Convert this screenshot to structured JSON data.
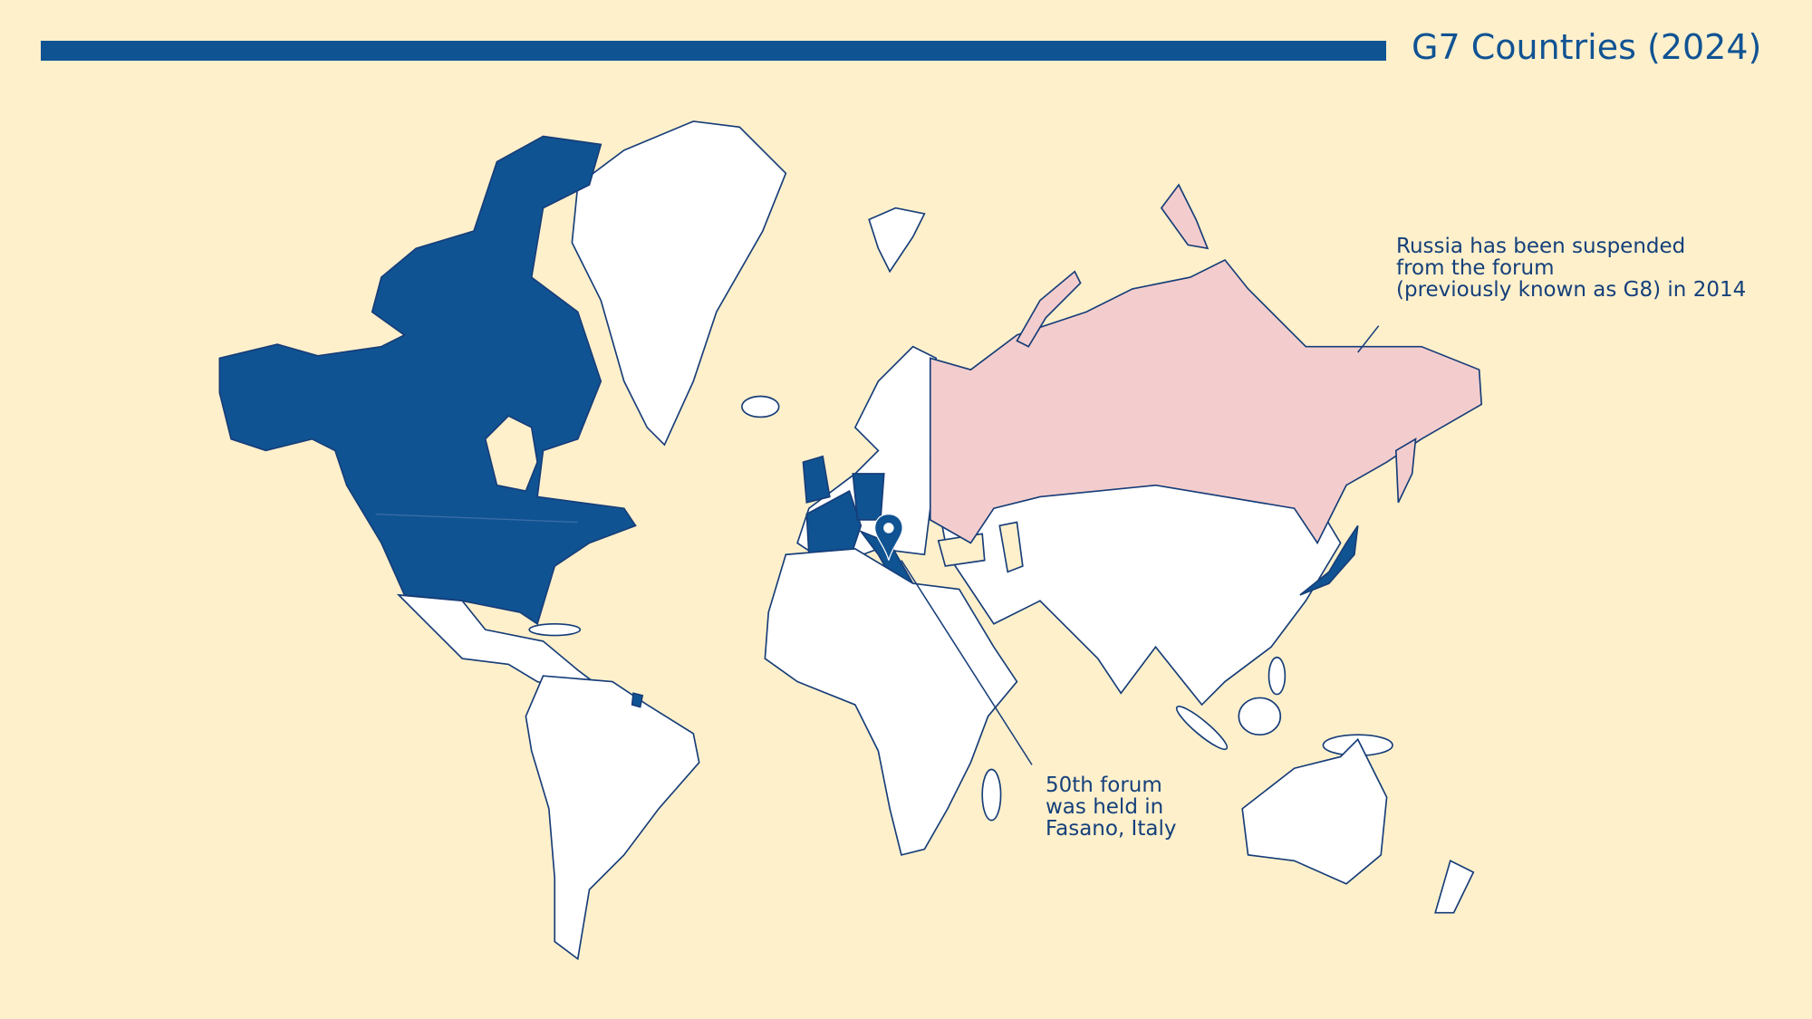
{
  "title": "G7 Countries (2024)",
  "colors": {
    "background": "#fff0cc",
    "g7_member": "#105393",
    "suspended": "#f3cdcd",
    "other": "#ffffff",
    "outline": "#163d78"
  },
  "map": {
    "g7_members": [
      "Canada",
      "United States",
      "United Kingdom",
      "France",
      "Germany",
      "Italy",
      "Japan"
    ],
    "suspended": [
      "Russia"
    ],
    "marker": {
      "icon": "map-pin-icon",
      "location": "Fasano, Italy"
    }
  },
  "annotations": {
    "russia": "Russia has been suspended\nfrom the forum\n(previously known as G8) in 2014",
    "fasano": "50th forum\nwas held in\nFasano, Italy"
  }
}
